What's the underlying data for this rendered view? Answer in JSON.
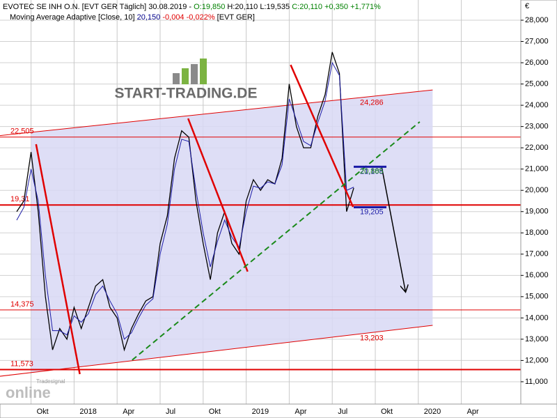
{
  "chart_data": {
    "type": "line",
    "header": {
      "parts": [
        {
          "text": "EVOTEC SE  INH O.N. [EVT GER  Täglich] 30.08.2019 -",
          "color": "#000000"
        },
        {
          "text": "O:19,850",
          "color": "#008000"
        },
        {
          "text": "H:20,110",
          "color": "#000000"
        },
        {
          "text": "L:19,535",
          "color": "#000000"
        },
        {
          "text": "C:20,110",
          "color": "#008000"
        },
        {
          "text": "+0,350",
          "color": "#008000"
        },
        {
          "text": "+1,771%",
          "color": "#008000"
        }
      ],
      "indicator": [
        {
          "text": "Moving Average Adaptive [Close, 10]",
          "color": "#000000"
        },
        {
          "text": "20,150",
          "color": "#00008b"
        },
        {
          "text": "-0,004",
          "color": "#e00000"
        },
        {
          "text": "-0,022%",
          "color": "#e00000"
        },
        {
          "text": "[EVT GER]",
          "color": "#000000"
        }
      ]
    },
    "logo": "START-TRADING.DE",
    "brand": {
      "small": "Tradesignal",
      "big": "online"
    },
    "currency": "€",
    "categories": [
      null,
      null,
      "Okt",
      null,
      null,
      null,
      null,
      null,
      "2018",
      null,
      null,
      null,
      null,
      null,
      "Apr",
      null,
      null,
      null,
      null,
      null,
      "Jul",
      null,
      null,
      null,
      null,
      null,
      "Okt",
      null,
      null,
      null,
      null,
      null,
      "2019",
      null,
      null,
      null,
      null,
      null,
      "Apr",
      null,
      null,
      null,
      null,
      null,
      "Jul",
      null,
      null,
      null,
      null,
      null,
      "Okt",
      null,
      null,
      null,
      null,
      null,
      "2020",
      null,
      null,
      null,
      null,
      null,
      "Apr"
    ],
    "series": [
      {
        "name": "EVT GER",
        "color": "#000000",
        "values": [
          19.0,
          19.5,
          21.8,
          19.0,
          15.0,
          12.5,
          13.5,
          13.0,
          14.5,
          13.5,
          14.5,
          15.5,
          15.8,
          14.5,
          14.0,
          12.5,
          13.5,
          14.2,
          14.8,
          15.0,
          17.5,
          18.8,
          21.5,
          22.8,
          22.5,
          19.5,
          17.5,
          15.8,
          18.0,
          19.0,
          17.5,
          17.0,
          19.5,
          20.5,
          20.0,
          20.5,
          20.3,
          21.5,
          25.0,
          23.0,
          22.0,
          22.0,
          23.5,
          24.5,
          26.5,
          25.5,
          19.0,
          20.11,
          null,
          null,
          null,
          null,
          null,
          null,
          null,
          null,
          null,
          null,
          null,
          null,
          null,
          null,
          null
        ]
      },
      {
        "name": "Moving Average Adaptive",
        "color": "#1a1aa6",
        "values": [
          18.6,
          19.2,
          21.0,
          19.5,
          16.0,
          13.4,
          13.4,
          13.2,
          14.1,
          13.8,
          14.2,
          15.1,
          15.5,
          14.8,
          14.2,
          13.0,
          13.3,
          14.0,
          14.6,
          14.9,
          17.0,
          18.4,
          21.0,
          22.4,
          22.3,
          20.0,
          18.0,
          16.4,
          17.6,
          18.6,
          17.8,
          17.3,
          19.0,
          20.2,
          20.1,
          20.4,
          20.3,
          21.2,
          24.3,
          23.3,
          22.3,
          22.1,
          23.2,
          24.2,
          26.0,
          25.4,
          20.0,
          20.15,
          null,
          null,
          null,
          null,
          null,
          null,
          null,
          null,
          null,
          null,
          null,
          null,
          null,
          null,
          null
        ]
      }
    ],
    "ylim": [
      9.95,
      28.95
    ],
    "yticks": [
      {
        "value": 11,
        "label": "11,000"
      },
      {
        "value": 12,
        "label": "12,000"
      },
      {
        "value": 13,
        "label": "13,000"
      },
      {
        "value": 14,
        "label": "14,000"
      },
      {
        "value": 15,
        "label": "15,000"
      },
      {
        "value": 16,
        "label": "16,000"
      },
      {
        "value": 17,
        "label": "17,000"
      },
      {
        "value": 18,
        "label": "18,000"
      },
      {
        "value": 19,
        "label": "19,000"
      },
      {
        "value": 20,
        "label": "20,000"
      },
      {
        "value": 21,
        "label": "21,000"
      },
      {
        "value": 22,
        "label": "22,000"
      },
      {
        "value": 23,
        "label": "23,000"
      },
      {
        "value": 24,
        "label": "24,000"
      },
      {
        "value": 25,
        "label": "25,000"
      },
      {
        "value": 26,
        "label": "26,000"
      },
      {
        "value": 27,
        "label": "27,000"
      },
      {
        "value": 28,
        "label": "28,000"
      }
    ],
    "grid": true,
    "levels": [
      {
        "value": 22.505,
        "label": "22,505",
        "color": "#e00000"
      },
      {
        "value": 19.31,
        "label": "19,31",
        "color": "#e00000"
      },
      {
        "value": 14.375,
        "label": "14,375",
        "color": "#e00000"
      },
      {
        "value": 11.573,
        "label": "11,573",
        "color": "#e00000"
      }
    ],
    "channel": {
      "color": "#d8d8f4",
      "line_color": "#e00000",
      "from": 2,
      "to": 58,
      "upper": [
        22.73,
        24.72
      ],
      "lower": [
        11.43,
        13.65
      ],
      "labels": [
        {
          "value": 24.286,
          "label": "24,286"
        },
        {
          "value": 13.203,
          "label": "13,203"
        }
      ]
    },
    "drawings": [
      {
        "kind": "trend",
        "color": "#e00000",
        "from": [
          2.7,
          22.17
        ],
        "to": [
          8.8,
          11.36
        ]
      },
      {
        "kind": "trend",
        "color": "#e00000",
        "from": [
          23.9,
          23.38
        ],
        "to": [
          32.2,
          16.18
        ]
      },
      {
        "kind": "trend",
        "color": "#e00000",
        "from": [
          38.2,
          25.9
        ],
        "to": [
          46.9,
          19.22
        ]
      },
      {
        "kind": "dashed",
        "color": "#1a8a1a",
        "from": [
          16.1,
          12.02
        ],
        "to": [
          56.2,
          23.22
        ]
      },
      {
        "kind": "arrow",
        "color": "#000000",
        "from": [
          50.9,
          21.09
        ],
        "to": [
          54.2,
          15.26
        ]
      }
    ],
    "marks": [
      {
        "value": 21.108,
        "label": "21,108",
        "color": "#1a1aa6"
      },
      {
        "value": 20.885,
        "label": "20,885",
        "color": "#1a8a1a"
      },
      {
        "value": 19.205,
        "label": "19,205",
        "color": "#1a1aa6"
      }
    ]
  }
}
